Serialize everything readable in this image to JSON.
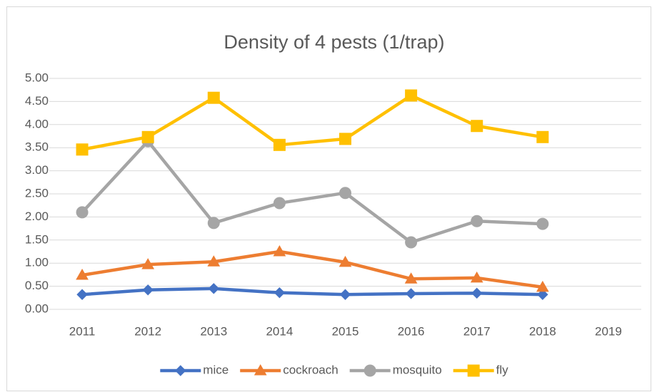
{
  "chart_data": {
    "type": "line",
    "title": "Density of 4 pests (1/trap)",
    "categories": [
      "2011",
      "2012",
      "2013",
      "2014",
      "2015",
      "2016",
      "2017",
      "2018",
      "2019"
    ],
    "series": [
      {
        "name": "mice",
        "color": "#4472c4",
        "marker": "diamond",
        "values": [
          0.32,
          0.42,
          0.45,
          0.36,
          0.32,
          0.34,
          0.35,
          0.32,
          null
        ]
      },
      {
        "name": "cockroach",
        "color": "#ed7d31",
        "marker": "triangle",
        "values": [
          0.74,
          0.97,
          1.03,
          1.25,
          1.02,
          0.66,
          0.68,
          0.48,
          null
        ]
      },
      {
        "name": "mosquito",
        "color": "#a5a5a5",
        "marker": "circle",
        "values": [
          2.1,
          3.64,
          1.87,
          2.3,
          2.52,
          1.45,
          1.91,
          1.85,
          null
        ]
      },
      {
        "name": "fly",
        "color": "#ffc000",
        "marker": "square",
        "values": [
          3.46,
          3.73,
          4.58,
          3.56,
          3.69,
          4.63,
          3.97,
          3.73,
          null
        ]
      }
    ],
    "ylim": [
      0,
      5
    ],
    "yticks": [
      {
        "value": 0,
        "label": "0.00"
      },
      {
        "value": 0.5,
        "label": "0.50"
      },
      {
        "value": 1,
        "label": "1.00"
      },
      {
        "value": 1.5,
        "label": "1.50"
      },
      {
        "value": 2,
        "label": "2.00"
      },
      {
        "value": 2.5,
        "label": "2.50"
      },
      {
        "value": 3,
        "label": "3.00"
      },
      {
        "value": 3.5,
        "label": "3.50"
      },
      {
        "value": 4,
        "label": "4.00"
      },
      {
        "value": 4.5,
        "label": "4.50"
      },
      {
        "value": 5,
        "label": "5.00"
      }
    ],
    "grid": true,
    "legend": "bottom"
  }
}
